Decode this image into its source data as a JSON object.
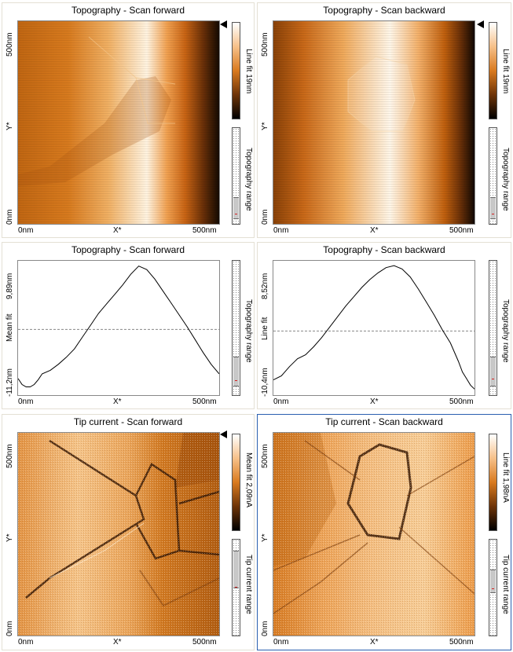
{
  "panels": {
    "topo_fwd_img": {
      "title": "Topography - Scan forward",
      "y_axis": {
        "label": "Y*",
        "top": "500nm",
        "bottom": "0nm"
      },
      "x_axis": {
        "label": "X*",
        "left": "0nm",
        "right": "500nm"
      },
      "colorbar": {
        "label": "Line fit 19nm"
      },
      "range": {
        "label": "Topography range"
      }
    },
    "topo_bwd_img": {
      "title": "Topography - Scan backward",
      "y_axis": {
        "label": "Y*",
        "top": "500nm",
        "bottom": "0nm"
      },
      "x_axis": {
        "label": "X*",
        "left": "0nm",
        "right": "500nm"
      },
      "colorbar": {
        "label": "Line fit 19nm"
      },
      "range": {
        "label": "Topography range"
      }
    },
    "topo_fwd_line": {
      "title": "Topography - Scan forward",
      "y_axis": {
        "label": "Mean fit",
        "top": "9,89nm",
        "bottom": "-11,2nm"
      },
      "x_axis": {
        "label": "X*",
        "left": "0nm",
        "right": "500nm"
      },
      "range": {
        "label": "Topography range"
      }
    },
    "topo_bwd_line": {
      "title": "Topography - Scan backward",
      "y_axis": {
        "label": "Line fit",
        "top": "8,52nm",
        "bottom": "-10,4nm"
      },
      "x_axis": {
        "label": "X*",
        "left": "0nm",
        "right": "500nm"
      },
      "range": {
        "label": "Topography range"
      }
    },
    "tip_fwd_img": {
      "title": "Tip current - Scan forward",
      "y_axis": {
        "label": "Y*",
        "top": "500nm",
        "bottom": "0nm"
      },
      "x_axis": {
        "label": "X*",
        "left": "0nm",
        "right": "500nm"
      },
      "colorbar": {
        "label": "Mean fit 2,09nA"
      },
      "range": {
        "label": "Tip current range"
      }
    },
    "tip_bwd_img": {
      "title": "Tip current - Scan backward",
      "y_axis": {
        "label": "Y*",
        "top": "500nm",
        "bottom": "0nm"
      },
      "x_axis": {
        "label": "X*",
        "left": "0nm",
        "right": "500nm"
      },
      "colorbar": {
        "label": "Line fit 1,98nA"
      },
      "range": {
        "label": "Tip current range"
      }
    }
  },
  "chart_data": [
    {
      "type": "line",
      "title": "Topography - Scan forward",
      "xlabel": "X*",
      "ylabel": "Mean fit",
      "xlim": [
        0,
        500
      ],
      "ylim": [
        -11.2,
        9.89
      ],
      "x": [
        0,
        10,
        20,
        30,
        40,
        50,
        60,
        80,
        100,
        120,
        140,
        160,
        180,
        200,
        220,
        240,
        260,
        280,
        300,
        320,
        340,
        360,
        380,
        400,
        420,
        440,
        460,
        480,
        500
      ],
      "y": [
        -9.2,
        -10.2,
        -10.6,
        -10.6,
        -10.2,
        -9.4,
        -8.4,
        -7.8,
        -6.8,
        -5.6,
        -4.2,
        -2.2,
        -0.2,
        1.8,
        3.4,
        5.0,
        6.6,
        8.4,
        9.8,
        9.2,
        7.6,
        5.6,
        3.6,
        1.6,
        -0.4,
        -2.6,
        -4.8,
        -6.8,
        -8.4
      ],
      "mean_line": -0.9
    },
    {
      "type": "line",
      "title": "Topography - Scan backward",
      "xlabel": "X*",
      "ylabel": "Line fit",
      "xlim": [
        0,
        500
      ],
      "ylim": [
        -10.4,
        8.52
      ],
      "x": [
        0,
        20,
        40,
        60,
        80,
        100,
        120,
        140,
        160,
        180,
        200,
        220,
        240,
        260,
        280,
        300,
        320,
        340,
        360,
        380,
        400,
        420,
        440,
        460,
        470,
        480,
        490,
        500
      ],
      "y": [
        -8.8,
        -8.2,
        -6.8,
        -5.6,
        -5.0,
        -3.8,
        -2.4,
        -0.8,
        0.8,
        2.4,
        3.8,
        5.2,
        6.4,
        7.4,
        8.2,
        8.5,
        8.0,
        6.8,
        5.0,
        3.0,
        1.0,
        -1.2,
        -3.2,
        -6.0,
        -7.6,
        -8.6,
        -9.6,
        -10.2
      ],
      "mean_line": -1.4
    }
  ]
}
